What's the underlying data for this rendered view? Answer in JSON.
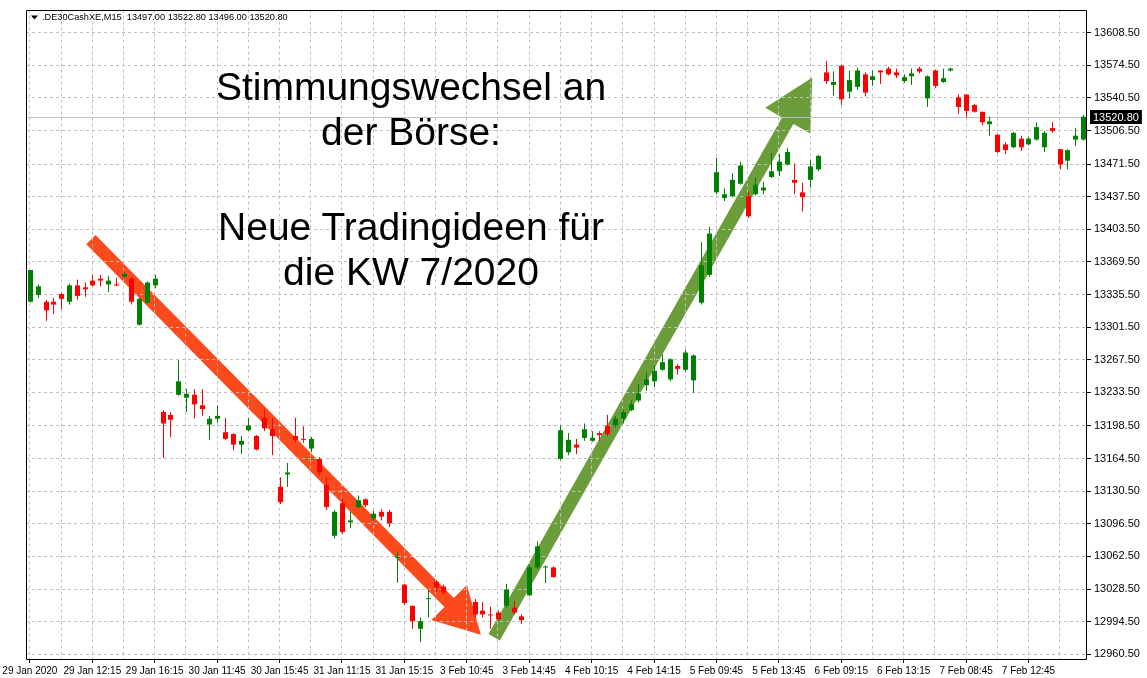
{
  "chart_data": {
    "type": "candlestick",
    "title": ".DE30CashXE,M15  13497.00 13522.80 13496.00 13520.80",
    "annotations": [
      "Stimmungswechsel an der Börse:",
      "Neue Tradingideen für die KW 7/2020"
    ],
    "categories": [
      "29 Jan 2020",
      null,
      null,
      null,
      null,
      null,
      null,
      null,
      "29 Jan 12:15",
      null,
      null,
      null,
      null,
      null,
      null,
      null,
      "29 Jan 16:15",
      null,
      null,
      null,
      null,
      null,
      null,
      null,
      "30 Jan 11:45",
      null,
      null,
      null,
      null,
      null,
      null,
      null,
      "30 Jan 15:45",
      null,
      null,
      null,
      null,
      null,
      null,
      null,
      "31 Jan 11:15",
      null,
      null,
      null,
      null,
      null,
      null,
      null,
      "31 Jan 15:15",
      null,
      null,
      null,
      null,
      null,
      null,
      null,
      "3 Feb 10:45",
      null,
      null,
      null,
      null,
      null,
      null,
      null,
      "3 Feb 14:45",
      null,
      null,
      null,
      null,
      null,
      null,
      null,
      "4 Feb 10:15",
      null,
      null,
      null,
      null,
      null,
      null,
      null,
      "4 Feb 14:15",
      null,
      null,
      null,
      null,
      null,
      null,
      null,
      "5 Feb 09:45",
      null,
      null,
      null,
      null,
      null,
      null,
      null,
      "5 Feb 13:45",
      null,
      null,
      null,
      null,
      null,
      null,
      null,
      "6 Feb 09:15",
      null,
      null,
      null,
      null,
      null,
      null,
      null,
      "6 Feb 13:15",
      null,
      null,
      null,
      null,
      null,
      null,
      null,
      "7 Feb 08:45",
      null,
      null,
      null,
      null,
      null,
      null,
      null,
      "7 Feb 12:45",
      null,
      null,
      null,
      null,
      null,
      null,
      null
    ],
    "ohlc": [
      [
        13328,
        13361,
        13327,
        13361
      ],
      [
        13335,
        13346,
        13332,
        13344
      ],
      [
        13328,
        13330,
        13308,
        13319
      ],
      [
        13328,
        13332,
        13315,
        13325
      ],
      [
        13336,
        13337,
        13320,
        13331
      ],
      [
        13328,
        13347,
        13325,
        13345
      ],
      [
        13345,
        13351,
        13330,
        13334
      ],
      [
        13343,
        13348,
        13333,
        13341
      ],
      [
        13350,
        13356,
        13344,
        13345
      ],
      [
        13352,
        13356,
        13344,
        13350
      ],
      [
        13346,
        13355,
        13338,
        13350
      ],
      [
        13346,
        13353,
        13344,
        13345
      ],
      [
        13354,
        13359,
        13353,
        13357
      ],
      [
        13352,
        13354,
        13325,
        13328
      ],
      [
        13304,
        13332,
        13303,
        13331
      ],
      [
        13327,
        13349,
        13326,
        13348
      ],
      [
        13345,
        13356,
        13342,
        13352
      ],
      [
        13213,
        13215,
        13165,
        13201
      ],
      [
        13210,
        13213,
        13187,
        13205
      ],
      [
        13231,
        13267,
        13230,
        13245
      ],
      [
        13228,
        13237,
        13213,
        13232
      ],
      [
        13231,
        13237,
        13206,
        13221
      ],
      [
        13220,
        13237,
        13209,
        13216
      ],
      [
        13200,
        13209,
        13184,
        13206
      ],
      [
        13206,
        13220,
        13202,
        13209
      ],
      [
        13192,
        13207,
        13184,
        13185
      ],
      [
        13190,
        13191,
        13173,
        13179
      ],
      [
        13179,
        13188,
        13169,
        13183
      ],
      [
        13194,
        13207,
        13193,
        13199
      ],
      [
        13188,
        13189,
        13173,
        13174
      ],
      [
        13207,
        13216,
        13193,
        13196
      ],
      [
        13195,
        13207,
        13168,
        13188
      ],
      [
        13135,
        13145,
        13117,
        13119
      ],
      [
        13148,
        13160,
        13135,
        13150
      ],
      [
        13188,
        13207,
        13181,
        13184
      ],
      [
        13185,
        13198,
        13181,
        13184
      ],
      [
        13175,
        13187,
        13171,
        13185
      ],
      [
        13164,
        13166,
        13147,
        13150
      ],
      [
        13137,
        13145,
        13111,
        13114
      ],
      [
        13084,
        13111,
        13081,
        13109
      ],
      [
        13118,
        13123,
        13086,
        13088
      ],
      [
        13098,
        13109,
        13092,
        13100
      ],
      [
        13114,
        13126,
        13112,
        13121
      ],
      [
        13122,
        13123,
        13114,
        13116
      ],
      [
        13102,
        13110,
        13099,
        13107
      ],
      [
        13109,
        13112,
        13100,
        13104
      ],
      [
        13109,
        13111,
        13093,
        13097
      ],
      [
        13061,
        13068,
        13035,
        13062
      ],
      [
        13033,
        13034,
        13012,
        13014
      ],
      [
        13011,
        13011,
        12987,
        12995
      ],
      [
        12987,
        12999,
        12973,
        12995
      ],
      [
        13018,
        13028,
        12999,
        13019
      ],
      [
        13036,
        13038,
        13026,
        13030
      ],
      [
        13031,
        13033,
        13023,
        13025
      ],
      null,
      null,
      null,
      [
        13015,
        13018,
        12999,
        13002
      ],
      [
        13006,
        13015,
        12999,
        13002
      ],
      [
        13002,
        13010,
        12987,
        13001
      ],
      [
        13004,
        13006,
        12996,
        12997
      ],
      [
        13011,
        13034,
        13009,
        13028
      ],
      [
        13009,
        13016,
        13002,
        13004
      ],
      [
        13000,
        13002,
        12992,
        12996
      ],
      [
        13022,
        13054,
        13021,
        13051
      ],
      [
        13051,
        13078,
        13049,
        13073
      ],
      [
        13051,
        13053,
        13035,
        13052
      ],
      [
        13051,
        13052,
        13040,
        13041
      ],
      [
        13164,
        13199,
        13163,
        13194
      ],
      [
        13171,
        13191,
        13168,
        13184
      ],
      [
        13179,
        13185,
        13169,
        13176
      ],
      [
        13186,
        13201,
        13183,
        13195
      ],
      [
        13183,
        13193,
        13182,
        13186
      ],
      [
        13191,
        13193,
        13183,
        13189
      ],
      [
        13199,
        13210,
        13188,
        13190
      ],
      [
        13199,
        13209,
        13197,
        13206
      ],
      [
        13206,
        13215,
        13201,
        13213
      ],
      [
        13215,
        13225,
        13214,
        13221
      ],
      [
        13225,
        13242,
        13223,
        13232
      ],
      [
        13241,
        13254,
        13235,
        13247
      ],
      [
        13245,
        13262,
        13239,
        13256
      ],
      [
        13257,
        13273,
        13256,
        13265
      ],
      [
        13247,
        13269,
        13245,
        13268
      ],
      [
        13261,
        13263,
        13252,
        13258
      ],
      [
        13257,
        13278,
        13255,
        13275
      ],
      [
        13246,
        13273,
        13233,
        13272
      ],
      [
        13327,
        13390,
        13325,
        13366
      ],
      [
        13356,
        13406,
        13354,
        13399
      ],
      [
        13442,
        13478,
        13440,
        13463
      ],
      [
        13436,
        13446,
        13433,
        13440
      ],
      [
        13438,
        13462,
        13437,
        13455
      ],
      [
        13451,
        13474,
        13450,
        13470
      ],
      [
        13438,
        13443,
        13415,
        13417
      ],
      [
        13440,
        13457,
        13439,
        13450
      ],
      [
        13444,
        13453,
        13440,
        13447
      ],
      [
        13458,
        13483,
        13457,
        13464
      ],
      [
        13464,
        13482,
        13459,
        13474
      ],
      [
        13471,
        13488,
        13470,
        13484
      ],
      [
        13455,
        13472,
        13440,
        13452
      ],
      [
        13442,
        13452,
        13422,
        13437
      ],
      [
        13455,
        13476,
        13447,
        13469
      ],
      [
        13466,
        13481,
        13464,
        13480
      ],
      [
        13567,
        13579,
        13555,
        13558
      ],
      [
        13554,
        13568,
        13543,
        13557
      ],
      [
        13574,
        13575,
        13533,
        13539
      ],
      [
        13547,
        13569,
        13540,
        13559
      ],
      [
        13552,
        13572,
        13549,
        13569
      ],
      [
        13565,
        13567,
        13542,
        13546
      ],
      [
        13559,
        13569,
        13553,
        13563
      ],
      [
        13569,
        13569,
        13555,
        13567
      ],
      [
        13571,
        13573,
        13564,
        13565
      ],
      [
        13567,
        13571,
        13561,
        13564
      ],
      [
        13558,
        13565,
        13556,
        13562
      ],
      [
        13563,
        13571,
        13554,
        13566
      ],
      [
        13571,
        13573,
        13566,
        13568
      ],
      [
        13540,
        13564,
        13531,
        13563
      ],
      [
        13569,
        13570,
        13551,
        13553
      ],
      [
        13557,
        13571,
        13556,
        13561
      ],
      [
        13569,
        13572,
        13568,
        13571
      ],
      [
        13541,
        13544,
        13524,
        13531
      ],
      [
        13544,
        13544,
        13520,
        13527
      ],
      [
        13533,
        13534,
        13525,
        13526
      ],
      [
        13526,
        13526,
        13512,
        13515
      ],
      [
        13513,
        13521,
        13501,
        13516
      ],
      [
        13502,
        13503,
        13483,
        13484
      ],
      [
        13492,
        13494,
        13482,
        13486
      ],
      [
        13489,
        13505,
        13488,
        13504
      ],
      [
        13498,
        13501,
        13485,
        13489
      ],
      [
        13492,
        13500,
        13491,
        13498
      ],
      [
        13497,
        13515,
        13496,
        13510
      ],
      [
        13489,
        13506,
        13484,
        13504
      ],
      [
        13509,
        13515,
        13504,
        13506
      ],
      [
        13487,
        13487,
        13466,
        13471
      ],
      [
        13475,
        13487,
        13466,
        13486
      ],
      [
        13497,
        13509,
        13490,
        13501
      ],
      [
        13497,
        13522.8,
        13496,
        13520.8
      ]
    ],
    "colors": [
      "#008000",
      "#008000",
      "#ff0000",
      "#ff0000",
      "#ff0000",
      "#008000",
      "#ff0000",
      "#ff0000",
      "#ff0000",
      "#ff0000",
      "#008000",
      "#ff0000",
      "#008000",
      "#ff0000",
      "#008000",
      "#008000",
      "#008000",
      "#ff0000",
      "#ff0000",
      "#008000",
      "#008000",
      "#ff0000",
      "#ff0000",
      "#008000",
      "#008000",
      "#ff0000",
      "#ff0000",
      "#008000",
      "#008000",
      "#ff0000",
      "#ff0000",
      "#ff0000",
      "#ff0000",
      "#008000",
      "#ff0000",
      "#ff0000",
      "#008000",
      "#ff0000",
      "#ff0000",
      "#008000",
      "#ff0000",
      "#008000",
      "#008000",
      "#ff0000",
      "#008000",
      "#ff0000",
      "#ff0000",
      "#008000",
      "#ff0000",
      "#ff0000",
      "#008000",
      "#008000",
      "#ff0000",
      "#ff0000",
      null,
      null,
      null,
      "#ff0000",
      "#ff0000",
      "#ff0000",
      "#ff0000",
      "#008000",
      "#ff0000",
      "#ff0000",
      "#008000",
      "#008000",
      "#008000",
      "#ff0000",
      "#008000",
      "#008000",
      "#ff0000",
      "#008000",
      "#008000",
      "#ff0000",
      "#ff0000",
      "#008000",
      "#008000",
      "#008000",
      "#008000",
      "#008000",
      "#008000",
      "#008000",
      "#008000",
      "#ff0000",
      "#008000",
      "#008000",
      "#008000",
      "#008000",
      "#008000",
      "#008000",
      "#008000",
      "#008000",
      "#ff0000",
      "#008000",
      "#008000",
      "#008000",
      "#008000",
      "#008000",
      "#ff0000",
      "#ff0000",
      "#008000",
      "#008000",
      "#ff0000",
      "#008000",
      "#ff0000",
      "#008000",
      "#008000",
      "#ff0000",
      "#008000",
      "#ff0000",
      "#ff0000",
      "#ff0000",
      "#008000",
      "#008000",
      "#ff0000",
      "#008000",
      "#ff0000",
      "#008000",
      "#008000",
      "#ff0000",
      "#ff0000",
      "#ff0000",
      "#ff0000",
      "#008000",
      "#ff0000",
      "#ff0000",
      "#008000",
      "#ff0000",
      "#008000",
      "#008000",
      "#008000",
      "#ff0000",
      "#ff0000",
      "#008000",
      "#008000",
      "#008000"
    ],
    "ylim": [
      12954.5,
      13632.5
    ],
    "yticks": [
      {
        "value": 12960.5,
        "label": "12960.50"
      },
      {
        "value": 12994.5,
        "label": "12994.50"
      },
      {
        "value": 13028.5,
        "label": "13028.50"
      },
      {
        "value": 13062.5,
        "label": "13062.50"
      },
      {
        "value": 13096.5,
        "label": "13096.50"
      },
      {
        "value": 13130.5,
        "label": "13130.50"
      },
      {
        "value": 13164.5,
        "label": "13164.50"
      },
      {
        "value": 13198.5,
        "label": "13198.50"
      },
      {
        "value": 13233.5,
        "label": "13233.50"
      },
      {
        "value": 13267.5,
        "label": "13267.50"
      },
      {
        "value": 13301.5,
        "label": "13301.50"
      },
      {
        "value": 13335.5,
        "label": "13335.50"
      },
      {
        "value": 13369.5,
        "label": "13369.50"
      },
      {
        "value": 13403.5,
        "label": "13403.50"
      },
      {
        "value": 13437.5,
        "label": "13437.50"
      },
      {
        "value": 13471.5,
        "label": "13471.50"
      },
      {
        "value": 13506.5,
        "label": "13506.50"
      },
      {
        "value": 13540.5,
        "label": "13540.50"
      },
      {
        "value": 13574.5,
        "label": "13574.50"
      },
      {
        "value": 13608.5,
        "label": "13608.50"
      }
    ],
    "grid": true,
    "ref_lines": [
      {
        "axis": "y",
        "value": 13520.8,
        "label": "13520.80",
        "color": "#c0c0c0"
      }
    ]
  }
}
